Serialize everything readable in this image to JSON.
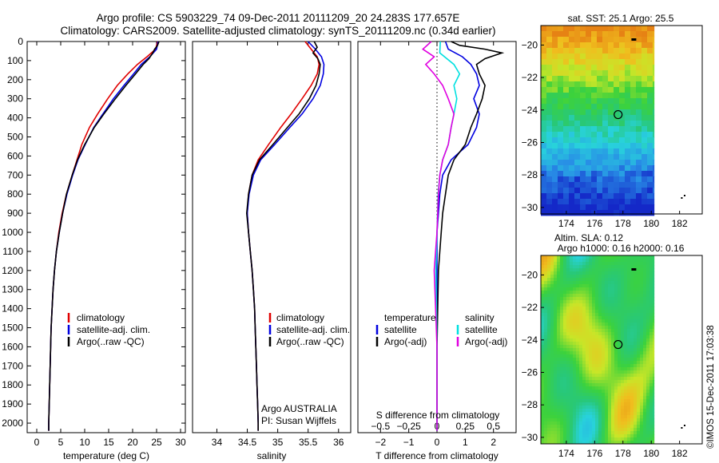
{
  "header": {
    "title_line1": "Argo profile: CS 5903229_74 09-Dec-2011 20111209_20 24.283S 177.657E",
    "title_line2": "Climatology: CARS2009. Satellite-adjusted climatology: synTS_20111209.nc (0.34d earlier)"
  },
  "credits": {
    "agency": "Argo AUSTRALIA",
    "pi": "PI: Susan Wijffels",
    "side_stamp": "©IMOS 15-Dec-2011 17:03:38"
  },
  "colors": {
    "climatology": "#e00000",
    "satellite": "#0000e0",
    "argo": "#000000",
    "sal_satellite": "#00e0e0",
    "sal_argo": "#e000e0"
  },
  "chart_data": [
    {
      "type": "line",
      "id": "temperature_profile",
      "xlabel": "temperature (deg C)",
      "xlim": [
        -2,
        31
      ],
      "xticks": [
        0,
        5,
        10,
        15,
        20,
        25,
        30
      ],
      "ylim": [
        0,
        2050
      ],
      "yticks": [
        0,
        100,
        200,
        300,
        400,
        500,
        600,
        700,
        800,
        900,
        1000,
        1100,
        1200,
        1300,
        1400,
        1500,
        1600,
        1700,
        1800,
        1900,
        2000
      ],
      "legend": [
        "climatology",
        "satellite-adj. clim.",
        "Argo(..raw -QC)"
      ],
      "series": [
        {
          "name": "climatology",
          "color": "#e00000",
          "points": [
            [
              25.2,
              0
            ],
            [
              24.8,
              40
            ],
            [
              23,
              80
            ],
            [
              21,
              120
            ],
            [
              19,
              170
            ],
            [
              16.8,
              230
            ],
            [
              14.8,
              300
            ],
            [
              12.7,
              380
            ],
            [
              11,
              450
            ],
            [
              9.4,
              540
            ],
            [
              8.4,
              620
            ],
            [
              7.4,
              700
            ],
            [
              6.2,
              800
            ],
            [
              5.3,
              900
            ],
            [
              4.6,
              1000
            ],
            [
              4.1,
              1100
            ],
            [
              3.7,
              1200
            ],
            [
              3.4,
              1300
            ],
            [
              3.2,
              1400
            ],
            [
              3,
              1500
            ],
            [
              2.9,
              1600
            ],
            [
              2.8,
              1700
            ],
            [
              2.7,
              1800
            ],
            [
              2.6,
              1900
            ],
            [
              2.5,
              2000
            ],
            [
              2.5,
              2040
            ]
          ]
        },
        {
          "name": "satellite-adj. clim.",
          "color": "#0000e0",
          "points": [
            [
              25.3,
              0
            ],
            [
              25,
              40
            ],
            [
              23.6,
              80
            ],
            [
              21.8,
              120
            ],
            [
              20.2,
              170
            ],
            [
              18.2,
              230
            ],
            [
              16,
              300
            ],
            [
              13.8,
              380
            ],
            [
              11.9,
              450
            ],
            [
              10.1,
              540
            ],
            [
              8.6,
              620
            ],
            [
              7.5,
              700
            ],
            [
              6.3,
              800
            ],
            [
              5.4,
              900
            ],
            [
              4.7,
              1000
            ],
            [
              4.1,
              1100
            ],
            [
              3.7,
              1200
            ],
            [
              3.4,
              1300
            ],
            [
              3.2,
              1400
            ],
            [
              3,
              1500
            ],
            [
              2.9,
              1600
            ],
            [
              2.8,
              1700
            ],
            [
              2.7,
              1800
            ],
            [
              2.6,
              1900
            ],
            [
              2.5,
              2000
            ],
            [
              2.5,
              2040
            ]
          ]
        },
        {
          "name": "Argo(..raw -QC)",
          "color": "#000000",
          "points": [
            [
              25.5,
              0
            ],
            [
              25.2,
              20
            ],
            [
              24.6,
              40
            ],
            [
              24.2,
              60
            ],
            [
              23.4,
              90
            ],
            [
              22.2,
              120
            ],
            [
              20.6,
              170
            ],
            [
              18.6,
              230
            ],
            [
              16.4,
              300
            ],
            [
              14,
              380
            ],
            [
              12,
              450
            ],
            [
              10,
              540
            ],
            [
              8.5,
              620
            ],
            [
              7.4,
              700
            ],
            [
              6.2,
              800
            ],
            [
              5.4,
              900
            ],
            [
              4.7,
              1000
            ],
            [
              4.1,
              1100
            ],
            [
              3.7,
              1200
            ],
            [
              3.4,
              1300
            ],
            [
              3.2,
              1400
            ],
            [
              3,
              1500
            ],
            [
              2.9,
              1600
            ],
            [
              2.8,
              1700
            ],
            [
              2.7,
              1800
            ],
            [
              2.6,
              1900
            ],
            [
              2.5,
              2000
            ],
            [
              2.5,
              2040
            ]
          ]
        }
      ]
    },
    {
      "type": "line",
      "id": "salinity_profile",
      "xlabel": "salinity",
      "xlim": [
        33.6,
        36.2
      ],
      "xticks": [
        34,
        34.5,
        35,
        35.5,
        36
      ],
      "ylim": [
        0,
        2050
      ],
      "legend": [
        "climatology",
        "satellite-adj. clim.",
        "Argo(..raw -QC)"
      ],
      "series": [
        {
          "name": "climatology",
          "color": "#e00000",
          "points": [
            [
              35.45,
              0
            ],
            [
              35.55,
              40
            ],
            [
              35.65,
              80
            ],
            [
              35.68,
              120
            ],
            [
              35.65,
              170
            ],
            [
              35.55,
              230
            ],
            [
              35.4,
              300
            ],
            [
              35.22,
              380
            ],
            [
              35.05,
              450
            ],
            [
              34.85,
              540
            ],
            [
              34.68,
              620
            ],
            [
              34.58,
              700
            ],
            [
              34.52,
              800
            ],
            [
              34.5,
              900
            ],
            [
              34.52,
              1000
            ],
            [
              34.55,
              1100
            ],
            [
              34.58,
              1200
            ],
            [
              34.6,
              1300
            ],
            [
              34.62,
              1400
            ],
            [
              34.63,
              1500
            ],
            [
              34.64,
              1600
            ],
            [
              34.65,
              1700
            ],
            [
              34.66,
              1800
            ],
            [
              34.67,
              1900
            ],
            [
              34.68,
              2000
            ],
            [
              34.68,
              2040
            ]
          ]
        },
        {
          "name": "satellite-adj. clim.",
          "color": "#0000e0",
          "points": [
            [
              35.5,
              0
            ],
            [
              35.62,
              40
            ],
            [
              35.72,
              80
            ],
            [
              35.76,
              120
            ],
            [
              35.75,
              170
            ],
            [
              35.7,
              230
            ],
            [
              35.58,
              300
            ],
            [
              35.4,
              380
            ],
            [
              35.2,
              450
            ],
            [
              34.95,
              540
            ],
            [
              34.72,
              620
            ],
            [
              34.6,
              700
            ],
            [
              34.53,
              800
            ],
            [
              34.5,
              900
            ],
            [
              34.52,
              1000
            ],
            [
              34.55,
              1100
            ],
            [
              34.58,
              1200
            ],
            [
              34.6,
              1300
            ],
            [
              34.62,
              1400
            ],
            [
              34.63,
              1500
            ],
            [
              34.64,
              1600
            ],
            [
              34.65,
              1700
            ],
            [
              34.66,
              1800
            ],
            [
              34.67,
              1900
            ],
            [
              34.68,
              2000
            ],
            [
              34.68,
              2040
            ]
          ]
        },
        {
          "name": "Argo(..raw -QC)",
          "color": "#000000",
          "points": [
            [
              35.6,
              0
            ],
            [
              35.65,
              30
            ],
            [
              35.58,
              60
            ],
            [
              35.66,
              90
            ],
            [
              35.7,
              120
            ],
            [
              35.68,
              170
            ],
            [
              35.63,
              230
            ],
            [
              35.52,
              300
            ],
            [
              35.35,
              380
            ],
            [
              35.16,
              450
            ],
            [
              34.92,
              540
            ],
            [
              34.7,
              620
            ],
            [
              34.58,
              700
            ],
            [
              34.52,
              800
            ],
            [
              34.49,
              900
            ],
            [
              34.52,
              1000
            ],
            [
              34.55,
              1100
            ],
            [
              34.58,
              1200
            ],
            [
              34.6,
              1300
            ],
            [
              34.62,
              1400
            ],
            [
              34.63,
              1500
            ],
            [
              34.64,
              1600
            ],
            [
              34.65,
              1700
            ],
            [
              34.66,
              1800
            ],
            [
              34.67,
              1900
            ],
            [
              34.68,
              2000
            ],
            [
              34.68,
              2040
            ]
          ]
        }
      ]
    },
    {
      "type": "line",
      "id": "difference_profile",
      "xlabel": "T difference from climatology",
      "xlabel_top": "S difference from climatology",
      "xlim": [
        -2.8,
        2.8
      ],
      "xticks": [
        -2,
        -1,
        0,
        1,
        2
      ],
      "sticks": [
        -0.5,
        -0.25,
        0,
        0.25,
        0.5
      ],
      "s_factor": 4,
      "legend_temperature": [
        "temperature",
        "satellite",
        "Argo(-adj)"
      ],
      "legend_salinity": [
        "salinity",
        "satellite",
        "Argo(-adj)"
      ],
      "series": [
        {
          "name": "T satellite",
          "color": "#0000e0",
          "points": [
            [
              0.3,
              0
            ],
            [
              0.4,
              40
            ],
            [
              0.9,
              80
            ],
            [
              1.2,
              120
            ],
            [
              1.4,
              170
            ],
            [
              1.5,
              230
            ],
            [
              1.3,
              300
            ],
            [
              1.5,
              380
            ],
            [
              1.4,
              450
            ],
            [
              1.1,
              540
            ],
            [
              0.5,
              620
            ],
            [
              0.2,
              700
            ],
            [
              0.1,
              800
            ],
            [
              0.05,
              900
            ],
            [
              0,
              1000
            ],
            [
              0,
              1200
            ],
            [
              0,
              1600
            ],
            [
              0,
              2040
            ]
          ]
        },
        {
          "name": "T Argo(-adj)",
          "color": "#000000",
          "points": [
            [
              0.5,
              0
            ],
            [
              0.8,
              20
            ],
            [
              1.7,
              40
            ],
            [
              2.3,
              60
            ],
            [
              1.7,
              90
            ],
            [
              1.4,
              120
            ],
            [
              1.5,
              170
            ],
            [
              1.7,
              230
            ],
            [
              1.6,
              300
            ],
            [
              1.4,
              380
            ],
            [
              1.2,
              450
            ],
            [
              1,
              540
            ],
            [
              0.6,
              620
            ],
            [
              0.4,
              700
            ],
            [
              0.3,
              800
            ],
            [
              0.2,
              900
            ],
            [
              0.15,
              1000
            ],
            [
              0.05,
              1200
            ],
            [
              0,
              1600
            ],
            [
              0,
              2040
            ]
          ]
        },
        {
          "name": "S satellite",
          "color": "#00e0e0",
          "points": [
            [
              0.12,
              0
            ],
            [
              0.1,
              60
            ],
            [
              0.6,
              120
            ],
            [
              0.8,
              170
            ],
            [
              0.6,
              230
            ],
            [
              0.7,
              300
            ],
            [
              0.6,
              380
            ],
            [
              0.5,
              450
            ],
            [
              0.4,
              540
            ],
            [
              0.2,
              620
            ],
            [
              0.1,
              700
            ],
            [
              0.04,
              800
            ],
            [
              0,
              1000
            ],
            [
              -0.04,
              1200
            ],
            [
              0,
              1600
            ],
            [
              0,
              2040
            ]
          ]
        },
        {
          "name": "S Argo(-adj)",
          "color": "#e000e0",
          "points": [
            [
              -0.2,
              0
            ],
            [
              -0.5,
              40
            ],
            [
              -0.1,
              80
            ],
            [
              -0.4,
              120
            ],
            [
              -0.1,
              170
            ],
            [
              0.2,
              230
            ],
            [
              0.4,
              300
            ],
            [
              0.6,
              380
            ],
            [
              0.5,
              450
            ],
            [
              0.4,
              540
            ],
            [
              0.2,
              620
            ],
            [
              0.1,
              700
            ],
            [
              0.05,
              800
            ],
            [
              0,
              1000
            ],
            [
              -0.1,
              1200
            ],
            [
              0,
              1600
            ],
            [
              0,
              2040
            ]
          ]
        }
      ]
    },
    {
      "type": "heatmap",
      "id": "sst_map",
      "title": "sat. SST: 25.1  Argo: 25.5",
      "xlim": [
        172.2,
        183.6
      ],
      "xticks": [
        174,
        176,
        178,
        180,
        182
      ],
      "ylim": [
        -30.4,
        -18.8
      ],
      "yticks": [
        -20,
        -22,
        -24,
        -26,
        -28,
        -30
      ],
      "float_position": [
        177.657,
        -24.283
      ]
    },
    {
      "type": "heatmap",
      "id": "sla_map",
      "title_line1": "Altim. SLA: 0.12",
      "title_line2": "Argo h1000: 0.16  h2000: 0.16",
      "xlim": [
        172.2,
        183.6
      ],
      "xticks": [
        174,
        176,
        178,
        180,
        182
      ],
      "ylim": [
        -30.4,
        -18.8
      ],
      "yticks": [
        -20,
        -22,
        -24,
        -26,
        -28,
        -30
      ],
      "float_position": [
        177.657,
        -24.283
      ]
    }
  ]
}
